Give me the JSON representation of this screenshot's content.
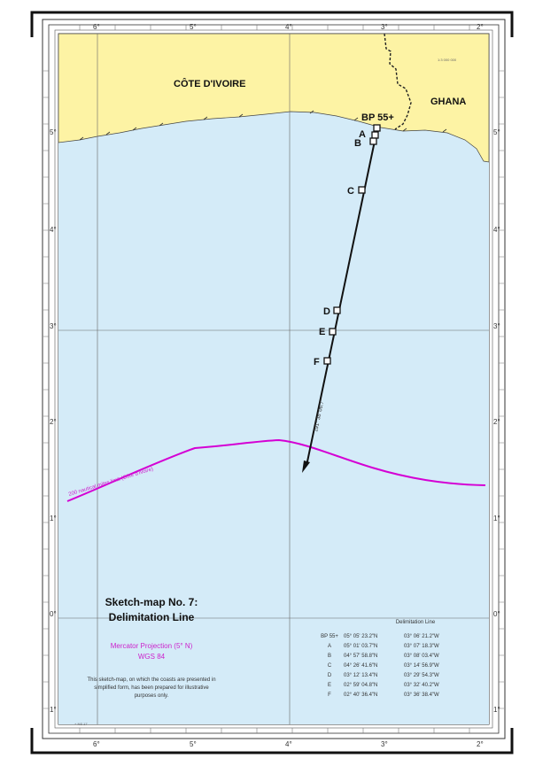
{
  "map": {
    "countries": {
      "north_west": "CÔTE D'IVOIRE",
      "north_east": "GHANA"
    },
    "longitude_labels": [
      "6°",
      "5°",
      "4°",
      "3°",
      "2°"
    ],
    "latitude_labels": [
      "5°",
      "4°",
      "3°",
      "2°",
      "1°",
      "0°",
      "1°"
    ],
    "point_labels": [
      "BP 55+",
      "A",
      "B",
      "C",
      "D",
      "E",
      "F"
    ],
    "azimuth_label": "191° 38' 06.7\"",
    "magenta_line_label": "200 nautical miles limit (Côte d'Ivoire)",
    "colors": {
      "land": "#fdf3a4",
      "sea": "#d4ebf8",
      "line": "#111111",
      "limit": "#d400d4"
    },
    "scale_note": "1:3 000 000",
    "corner_note": "+ NS 17"
  },
  "legend": {
    "title_line1": "Sketch-map No. 7:",
    "title_line2": "Delimitation Line",
    "projection": "Mercator Projection (5° N)",
    "datum": "WGS 84",
    "note": "This sketch-map, on which the coasts are presented in simplified form, has been prepared for illustrative purposes only."
  },
  "table": {
    "header": "Delimitation Line",
    "rows": [
      {
        "pt": "BP 55+",
        "lat": "05° 05' 23.2\"N",
        "lon": "03° 06' 21.2\"W"
      },
      {
        "pt": "A",
        "lat": "05° 01' 03.7\"N",
        "lon": "03° 07' 18.3\"W"
      },
      {
        "pt": "B",
        "lat": "04° 57' 58.8\"N",
        "lon": "03° 08' 03.4\"W"
      },
      {
        "pt": "C",
        "lat": "04° 26' 41.6\"N",
        "lon": "03° 14' 56.9\"W"
      },
      {
        "pt": "D",
        "lat": "03° 12' 13.4\"N",
        "lon": "03° 29' 54.3\"W"
      },
      {
        "pt": "E",
        "lat": "02° 59' 04.8\"N",
        "lon": "03° 32' 40.2\"W"
      },
      {
        "pt": "F",
        "lat": "02° 40' 36.4\"N",
        "lon": "03° 36' 38.4\"W"
      }
    ]
  }
}
